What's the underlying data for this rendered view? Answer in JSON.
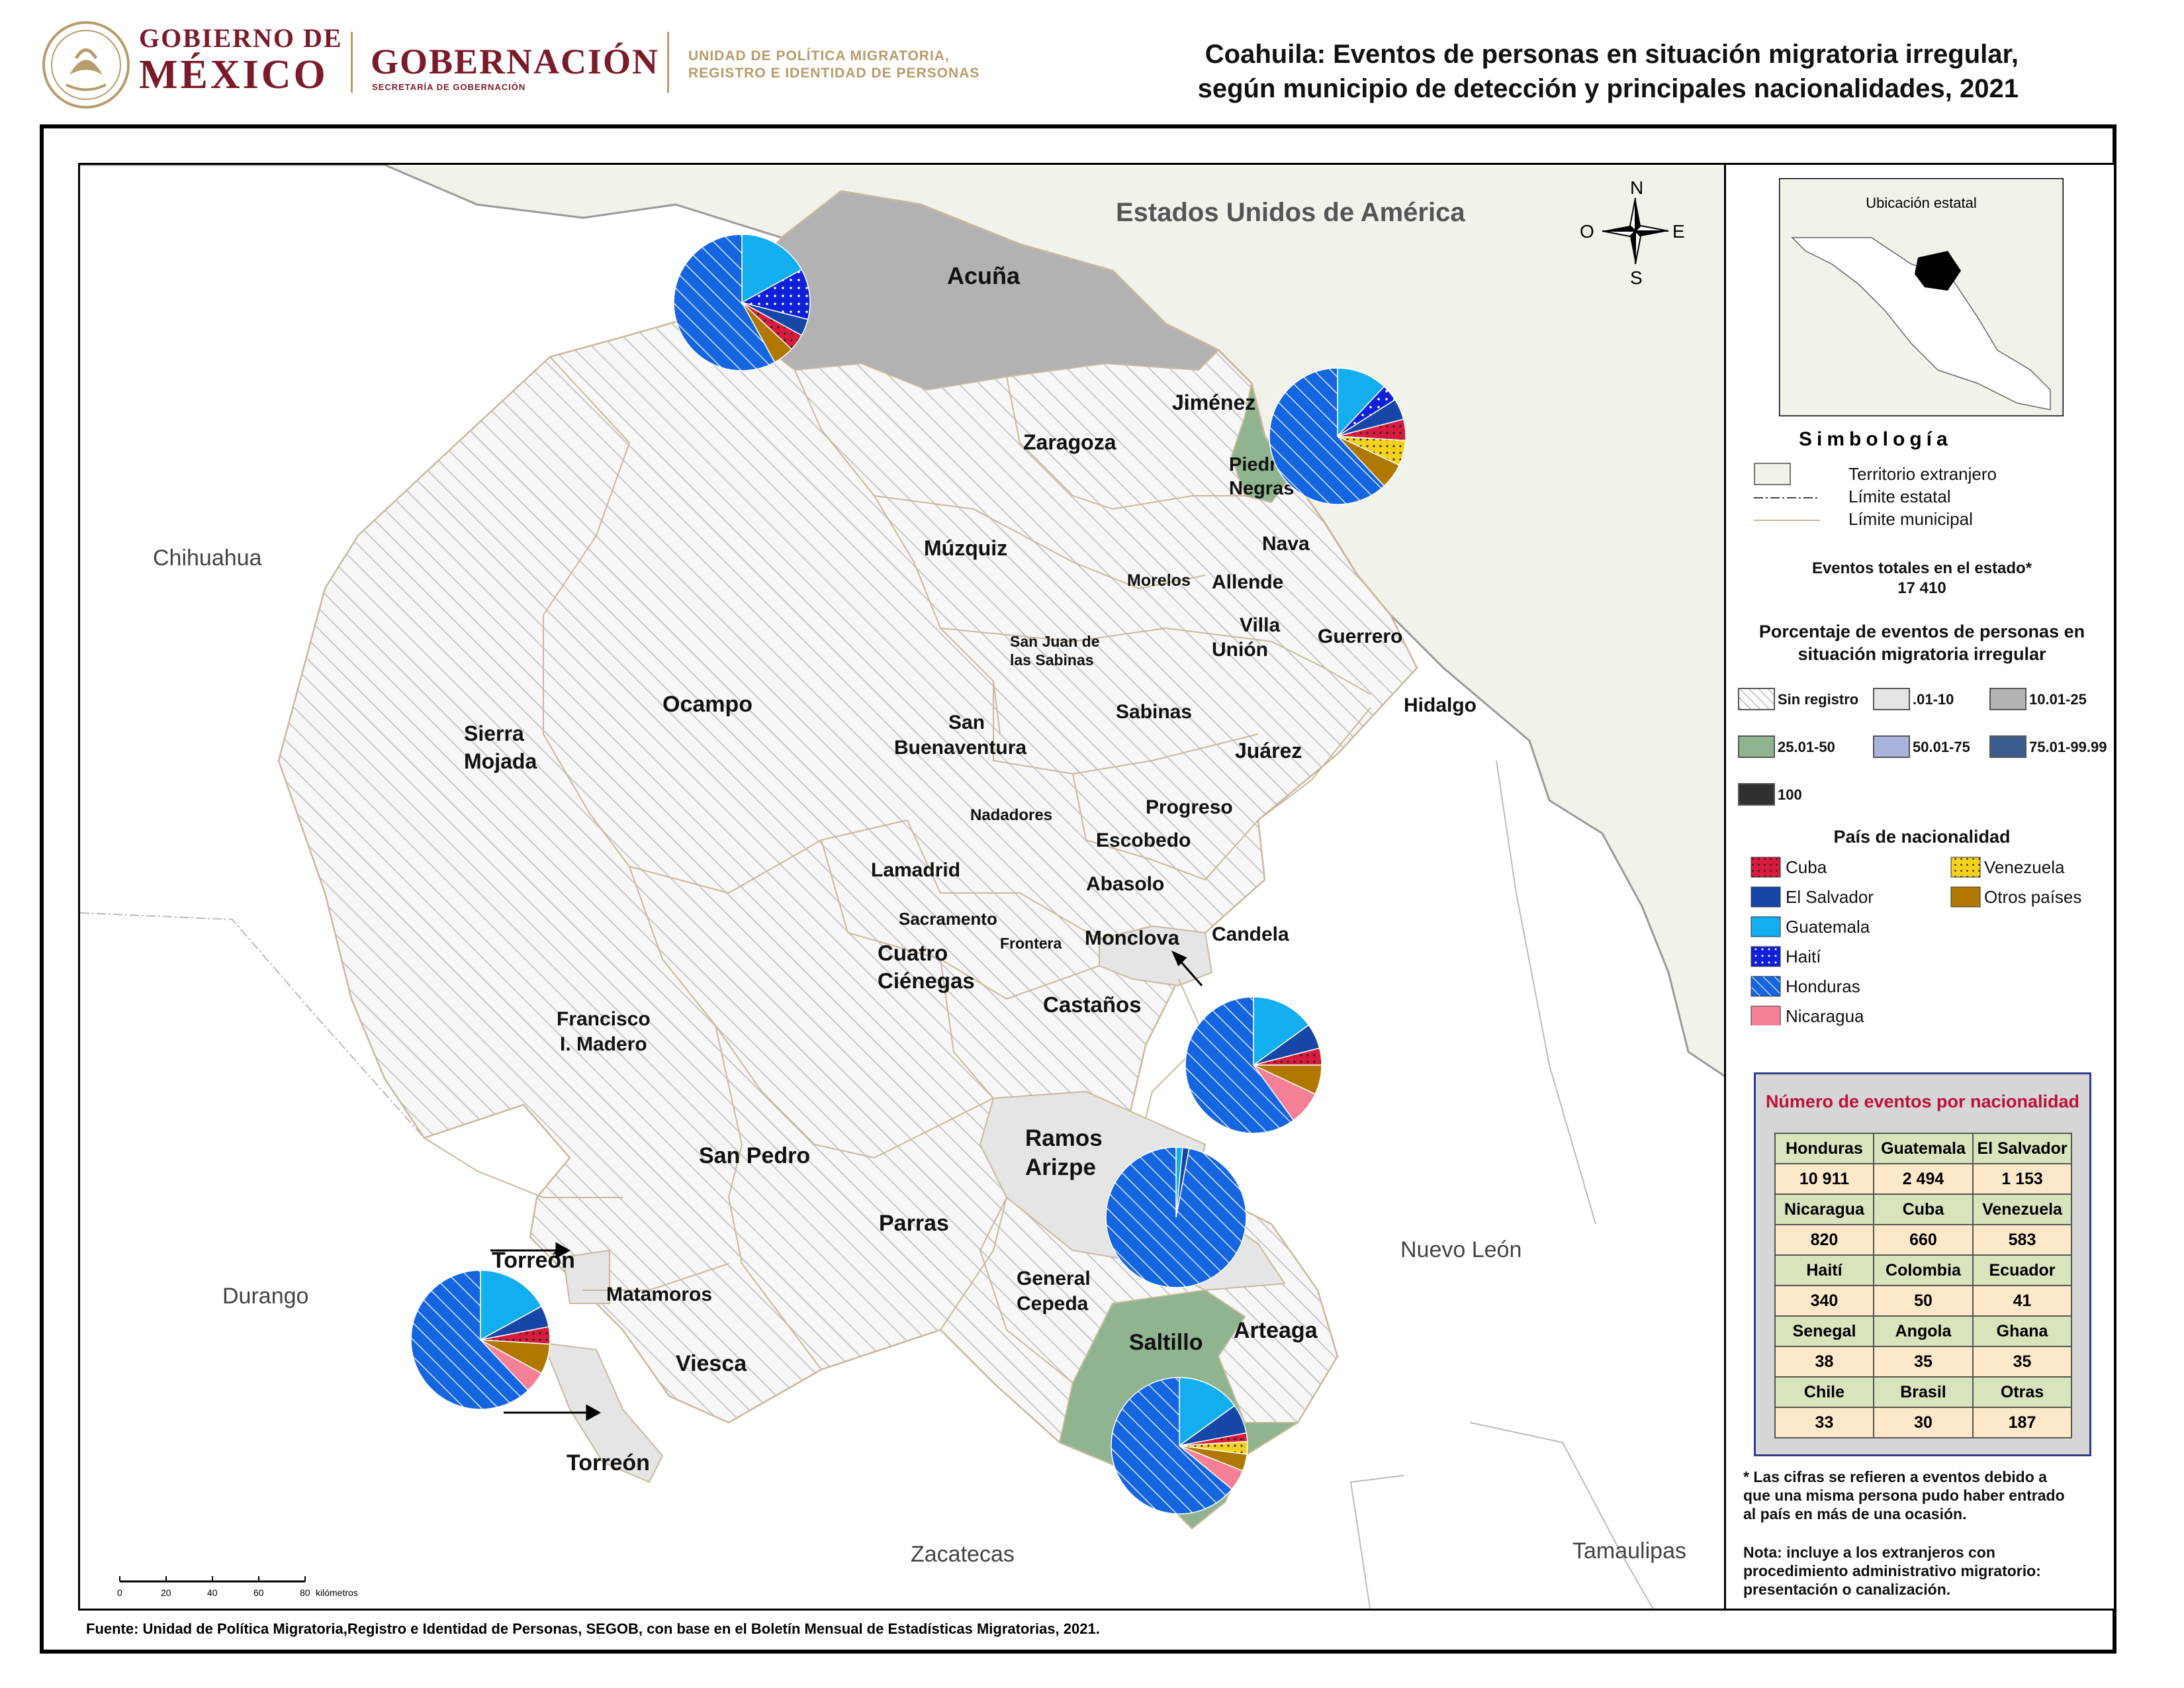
{
  "header": {
    "gob_line1": "GOBIERNO DE",
    "gob_line2": "MÉXICO",
    "gobernacion": "GOBERNACIÓN",
    "secretaria": "SECRETARÍA DE GOBERNACIÓN",
    "unidad_line1": "UNIDAD DE POLÍTICA MIGRATORIA,",
    "unidad_line2": "REGISTRO E IDENTIDAD DE PERSONAS",
    "title_line1": "Coahuila: Eventos de personas en situación migratoria irregular,",
    "title_line2": "según municipio de detección y principales nacionalidades, 2021"
  },
  "map": {
    "neighbors": {
      "usa": "Estados Unidos de América",
      "chihuahua": "Chihuahua",
      "durango": "Durango",
      "zacatecas": "Zacatecas",
      "nuevo_leon": "Nuevo León",
      "tamaulipas": "Tamaulipas"
    },
    "municipalities": {
      "acuna": "Acuña",
      "jimenez": "Jiménez",
      "zaragoza": "Zaragoza",
      "piedras_negras_1": "Piedras",
      "piedras_negras_2": "Negras",
      "muzquiz": "Múzquiz",
      "nava": "Nava",
      "morelos": "Morelos",
      "allende": "Allende",
      "villa_union_1": "Villa",
      "villa_union_2": "Unión",
      "san_juan_1": "San Juan de",
      "san_juan_2": "las Sabinas",
      "guerrero": "Guerrero",
      "hidalgo": "Hidalgo",
      "ocampo": "Ocampo",
      "sierra_mojada_1": "Sierra",
      "sierra_mojada_2": "Mojada",
      "san_buenaventura_1": "San",
      "san_buenaventura_2": "Buenaventura",
      "sabinas": "Sabinas",
      "juarez": "Juárez",
      "nadadores": "Nadadores",
      "progreso": "Progreso",
      "escobedo": "Escobedo",
      "lamadrid": "Lamadrid",
      "abasolo": "Abasolo",
      "sacramento": "Sacramento",
      "monclova": "Monclova",
      "candela": "Candela",
      "frontera": "Frontera",
      "cuatro_cienegas_1": "Cuatro",
      "cuatro_cienegas_2": "Ciénegas",
      "castanos": "Castaños",
      "francisco_madero_1": "Francisco",
      "francisco_madero_2": "I. Madero",
      "san_pedro": "San Pedro",
      "ramos_arizpe_1": "Ramos",
      "ramos_arizpe_2": "Arizpe",
      "parras": "Parras",
      "torreon_top": "Torreón",
      "matamoros": "Matamoros",
      "general_cepeda_1": "General",
      "general_cepeda_2": "Cepeda",
      "saltillo": "Saltillo",
      "arteaga": "Arteaga",
      "viesca": "Viesca",
      "torreon_bottom": "Torreón"
    },
    "compass": {
      "n": "N",
      "s": "S",
      "e": "E",
      "w": "O"
    },
    "scale": {
      "ticks": [
        "0",
        "20",
        "40",
        "60",
        "80"
      ],
      "unit": "kilómetros"
    },
    "pies": [
      {
        "municipio": "Acuña",
        "shares": {
          "Honduras": 58,
          "Guatemala": 17,
          "Haití": 12,
          "Cuba": 4,
          "Otros países": 5,
          "El Salvador": 4
        }
      },
      {
        "municipio": "Piedras Negras",
        "shares": {
          "Honduras": 62,
          "Guatemala": 12,
          "El Salvador": 5,
          "Cuba": 5,
          "Venezuela": 6,
          "Otros países": 6,
          "Haití": 4
        }
      },
      {
        "municipio": "Monclova",
        "shares": {
          "Honduras": 60,
          "Guatemala": 15,
          "El Salvador": 6,
          "Cuba": 4,
          "Otros países": 7,
          "Nicaragua": 8
        }
      },
      {
        "municipio": "Ramos Arizpe",
        "shares": {
          "Honduras": 97,
          "El Salvador": 1.5,
          "Guatemala": 1.5
        }
      },
      {
        "municipio": "Torreón",
        "shares": {
          "Honduras": 62,
          "Guatemala": 17,
          "El Salvador": 5,
          "Cuba": 4,
          "Otros países": 7,
          "Nicaragua": 5
        }
      },
      {
        "municipio": "Saltillo",
        "shares": {
          "Honduras": 64,
          "Guatemala": 15,
          "El Salvador": 7,
          "Otros países": 4,
          "Venezuela": 3,
          "Nicaragua": 5,
          "Cuba": 2
        }
      }
    ],
    "choropleth": {
      "Acuña": "10.01-25",
      "Piedras Negras": "25.01-50",
      "Saltillo": "25.01-50",
      "Monclova": ".01-10",
      "Ramos Arizpe": ".01-10",
      "Torreón": ".01-10",
      "Matamoros": ".01-10",
      "Castaños": ".01-10"
    }
  },
  "legend": {
    "inset_title": "Ubicación estatal",
    "simbologia": "Simbología",
    "territorio": "Territorio extranjero",
    "limite_estatal": "Límite estatal",
    "limite_municipal": "Límite municipal",
    "eventos_totales_label": "Eventos totales en el estado*",
    "eventos_totales_value": "17 410",
    "porcentaje_title_1": "Porcentaje de eventos de personas en",
    "porcentaje_title_2": "situación migratoria irregular",
    "classes": [
      {
        "label": "Sin registro",
        "color": "#ffffff",
        "hatch": true
      },
      {
        "label": ".01-10",
        "color": "#e5e5e5"
      },
      {
        "label": "10.01-25",
        "color": "#b2b2b2"
      },
      {
        "label": "25.01-50",
        "color": "#90b48f"
      },
      {
        "label": "50.01-75",
        "color": "#aab2de"
      },
      {
        "label": "75.01-99.99",
        "color": "#3b5c8e"
      },
      {
        "label": "100",
        "color": "#303030"
      }
    ],
    "pais_title": "País de nacionalidad",
    "nationalities": [
      {
        "label": "Cuba",
        "color": "#d81b3c",
        "pattern": "dots"
      },
      {
        "label": "El Salvador",
        "color": "#1747a6"
      },
      {
        "label": "Guatemala",
        "color": "#12aef0"
      },
      {
        "label": "Haití",
        "color": "#1020d8",
        "pattern": "dots"
      },
      {
        "label": "Honduras",
        "color": "#1565e0",
        "pattern": "hatch"
      },
      {
        "label": "Nicaragua",
        "color": "#f57f95"
      },
      {
        "label": "Venezuela",
        "color": "#f5d21a",
        "pattern": "dots"
      },
      {
        "label": "Otros países",
        "color": "#b07800"
      }
    ],
    "table_title": "Número de eventos por nacionalidad",
    "table": [
      [
        [
          "Honduras",
          "10 911"
        ],
        [
          "Guatemala",
          "2 494"
        ],
        [
          "El Salvador",
          "1 153"
        ]
      ],
      [
        [
          "Nicaragua",
          "820"
        ],
        [
          "Cuba",
          "660"
        ],
        [
          "Venezuela",
          "583"
        ]
      ],
      [
        [
          "Haití",
          "340"
        ],
        [
          "Colombia",
          "50"
        ],
        [
          "Ecuador",
          "41"
        ]
      ],
      [
        [
          "Senegal",
          "38"
        ],
        [
          "Angola",
          "35"
        ],
        [
          "Ghana",
          "35"
        ]
      ],
      [
        [
          "Chile",
          "33"
        ],
        [
          "Brasil",
          "30"
        ],
        [
          "Otras",
          "187"
        ]
      ]
    ],
    "note1_1": "* Las cifras se refieren a eventos debido a",
    "note1_2": "que una misma persona pudo haber entrado",
    "note1_3": "al país en más de una ocasión.",
    "note2_1": "Nota: incluye a los extranjeros con",
    "note2_2": "procedimiento administrativo migratorio:",
    "note2_3": "presentación o canalización."
  },
  "footer": {
    "source": "Fuente: Unidad de Política Migratoria,Registro e Identidad de Personas, SEGOB, con base en el Boletín Mensual de Estadísticas Migratorias, 2021."
  }
}
